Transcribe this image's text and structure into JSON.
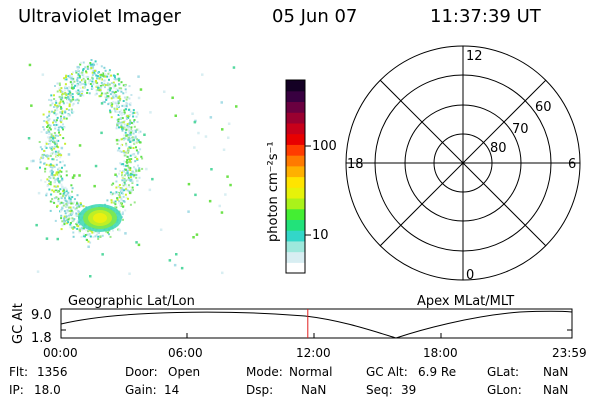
{
  "header": {
    "instrument": "Ultraviolet Imager",
    "date": "05 Jun 07",
    "time": "11:37:39 UT"
  },
  "colorbar": {
    "label": "photon cm⁻²s⁻¹",
    "ticks": [
      "100",
      "10"
    ],
    "scale": "log",
    "colors": [
      "#ffffff",
      "#d8eef2",
      "#9ee8dc",
      "#33d6c8",
      "#22e27a",
      "#44ee33",
      "#aaf21a",
      "#e6f20a",
      "#ffe400",
      "#ffb000",
      "#ff7a00",
      "#ff3c00",
      "#e80000",
      "#c8001a",
      "#9a0030",
      "#6a0040",
      "#380040",
      "#140024"
    ]
  },
  "polar_plot": {
    "mlt_labels": {
      "top": "12",
      "left": "18",
      "right": "6",
      "bottom": "0"
    },
    "lat_labels": [
      "60",
      "70",
      "80"
    ]
  },
  "altitude_panel": {
    "left_label": "Geographic Lat/Lon",
    "right_label": "Apex MLat/MLT",
    "y_title": "GC Alt",
    "y_max": "9.0",
    "y_min": "1.8",
    "time_ticks": [
      "00:00",
      "06:00",
      "12:00",
      "18:00",
      "23:59"
    ],
    "current_time_fraction": 0.483
  },
  "info": {
    "flt_label": "Flt:",
    "flt_value": "1356",
    "door_label": "Door:",
    "door_value": "Open",
    "mode_label": "Mode:",
    "mode_value": "Normal",
    "gcalt_label": "GC Alt:",
    "gcalt_value": "6.9 Re",
    "glat_label": "GLat:",
    "glat_value": "NaN",
    "ip_label": "IP:",
    "ip_value": "18.0",
    "gain_label": "Gain:",
    "gain_value": "14",
    "dsp_label": "Dsp:",
    "dsp_value": "NaN",
    "seq_label": "Seq:",
    "seq_value": "39",
    "glon_label": "GLon:",
    "glon_value": "NaN"
  }
}
